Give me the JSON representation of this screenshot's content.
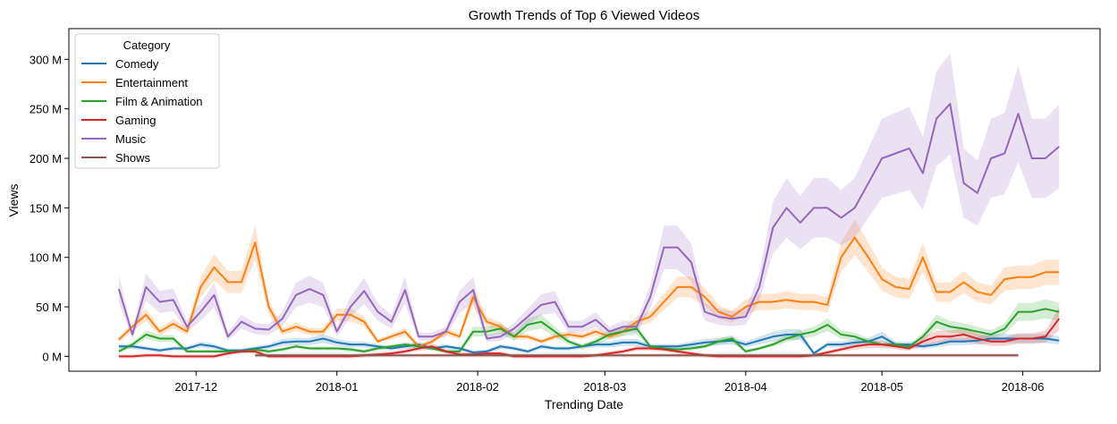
{
  "chart_data": {
    "type": "line",
    "title": "Growth Trends of Top 6 Viewed Videos",
    "xlabel": "Trending Date",
    "ylabel": "Views",
    "ylim": [
      -15,
      331
    ],
    "xlim": [
      "2017-11-03",
      "2018-06-18"
    ],
    "yticks": [
      0,
      50,
      100,
      150,
      200,
      250,
      300
    ],
    "ytick_labels": [
      "0 M",
      "50 M",
      "100 M",
      "150 M",
      "200 M",
      "250 M",
      "300 M"
    ],
    "xticks": [
      "2017-12-01",
      "2018-01-01",
      "2018-02-01",
      "2018-03-01",
      "2018-04-01",
      "2018-05-01",
      "2018-06-01"
    ],
    "xtick_labels": [
      "2017-12",
      "2018-01",
      "2018-02",
      "2018-03",
      "2018-04",
      "2018-05",
      "2018-06"
    ],
    "grid": false,
    "legend": {
      "title": "Category",
      "placement": "top-left"
    },
    "unit": "millions of views",
    "confidence_band": true,
    "x": [
      "2017-11-14",
      "2017-11-17",
      "2017-11-20",
      "2017-11-23",
      "2017-11-26",
      "2017-11-29",
      "2017-12-02",
      "2017-12-05",
      "2017-12-08",
      "2017-12-11",
      "2017-12-14",
      "2017-12-17",
      "2017-12-20",
      "2017-12-23",
      "2017-12-26",
      "2017-12-29",
      "2018-01-01",
      "2018-01-04",
      "2018-01-07",
      "2018-01-10",
      "2018-01-13",
      "2018-01-16",
      "2018-01-19",
      "2018-01-22",
      "2018-01-25",
      "2018-01-28",
      "2018-01-31",
      "2018-02-03",
      "2018-02-06",
      "2018-02-09",
      "2018-02-12",
      "2018-02-15",
      "2018-02-18",
      "2018-02-21",
      "2018-02-24",
      "2018-02-27",
      "2018-03-02",
      "2018-03-05",
      "2018-03-08",
      "2018-03-11",
      "2018-03-14",
      "2018-03-17",
      "2018-03-20",
      "2018-03-23",
      "2018-03-26",
      "2018-03-29",
      "2018-04-01",
      "2018-04-04",
      "2018-04-07",
      "2018-04-10",
      "2018-04-13",
      "2018-04-16",
      "2018-04-19",
      "2018-04-22",
      "2018-04-25",
      "2018-04-28",
      "2018-05-01",
      "2018-05-04",
      "2018-05-07",
      "2018-05-10",
      "2018-05-13",
      "2018-05-16",
      "2018-05-19",
      "2018-05-22",
      "2018-05-25",
      "2018-05-28",
      "2018-05-31",
      "2018-06-03",
      "2018-06-06",
      "2018-06-09"
    ],
    "series": [
      {
        "name": "Comedy",
        "color": "#1f77b4",
        "ci_relative": 0.25,
        "values": [
          10,
          10,
          8,
          6,
          8,
          8,
          12,
          10,
          6,
          6,
          8,
          10,
          14,
          15,
          15,
          18,
          14,
          12,
          12,
          10,
          8,
          10,
          12,
          8,
          10,
          8,
          4,
          5,
          10,
          8,
          5,
          10,
          8,
          8,
          10,
          12,
          12,
          14,
          14,
          10,
          10,
          10,
          12,
          14,
          15,
          16,
          12,
          16,
          20,
          22,
          22,
          3,
          12,
          12,
          14,
          15,
          20,
          12,
          12,
          10,
          12,
          15,
          15,
          16,
          18,
          18,
          18,
          18,
          18,
          16
        ]
      },
      {
        "name": "Entertainment",
        "color": "#ff7f0e",
        "ci_relative": 0.15,
        "values": [
          17,
          30,
          42,
          25,
          33,
          25,
          70,
          90,
          75,
          75,
          115,
          50,
          25,
          30,
          25,
          25,
          42,
          42,
          35,
          15,
          20,
          25,
          10,
          15,
          25,
          20,
          60,
          35,
          30,
          20,
          20,
          15,
          20,
          22,
          20,
          25,
          20,
          25,
          35,
          40,
          55,
          70,
          70,
          60,
          45,
          40,
          50,
          55,
          55,
          57,
          55,
          55,
          52,
          100,
          120,
          100,
          78,
          70,
          68,
          100,
          65,
          65,
          75,
          65,
          62,
          78,
          80,
          80,
          85,
          85
        ]
      },
      {
        "name": "Film & Animation",
        "color": "#2ca02c",
        "ci_relative": 0.2,
        "values": [
          5,
          12,
          22,
          18,
          18,
          5,
          5,
          5,
          5,
          5,
          7,
          5,
          7,
          10,
          8,
          8,
          8,
          7,
          5,
          8,
          10,
          12,
          10,
          8,
          5,
          5,
          25,
          25,
          28,
          20,
          32,
          35,
          25,
          15,
          10,
          15,
          22,
          25,
          28,
          10,
          8,
          7,
          8,
          10,
          15,
          18,
          5,
          8,
          12,
          18,
          22,
          25,
          32,
          22,
          20,
          15,
          12,
          12,
          10,
          20,
          35,
          30,
          28,
          25,
          22,
          28,
          45,
          45,
          48,
          45
        ]
      },
      {
        "name": "Gaming",
        "color": "#d62728",
        "ci_relative": 0.3,
        "values": [
          0,
          0,
          1,
          1,
          0,
          0,
          0,
          0,
          3,
          5,
          5,
          0,
          0,
          0,
          0,
          0,
          0,
          0,
          1,
          2,
          3,
          5,
          8,
          10,
          5,
          2,
          2,
          3,
          3,
          0,
          0,
          0,
          0,
          0,
          0,
          1,
          3,
          5,
          8,
          8,
          7,
          5,
          3,
          1,
          0,
          0,
          0,
          0,
          0,
          0,
          0,
          1,
          4,
          7,
          10,
          12,
          12,
          10,
          8,
          15,
          20,
          20,
          22,
          18,
          15,
          15,
          18,
          18,
          20,
          38
        ]
      },
      {
        "name": "Music",
        "color": "#9467bd",
        "ci_relative": 0.2,
        "values": [
          68,
          22,
          70,
          55,
          57,
          30,
          45,
          62,
          20,
          35,
          28,
          27,
          38,
          62,
          68,
          62,
          25,
          50,
          66,
          45,
          35,
          67,
          20,
          20,
          25,
          55,
          67,
          18,
          20,
          28,
          40,
          52,
          55,
          30,
          30,
          37,
          25,
          30,
          30,
          60,
          110,
          110,
          95,
          45,
          40,
          38,
          40,
          70,
          130,
          150,
          135,
          150,
          150,
          140,
          150,
          175,
          200,
          205,
          210,
          185,
          240,
          255,
          175,
          165,
          200,
          205,
          245,
          200,
          200,
          212
        ]
      },
      {
        "name": "Shows",
        "color": "#8c564b",
        "ci_relative": 0.1,
        "values": [
          null,
          null,
          null,
          null,
          null,
          null,
          null,
          null,
          null,
          null,
          1,
          1,
          1,
          1,
          1,
          1,
          1,
          1,
          1,
          1,
          1,
          1,
          1,
          1,
          1,
          1,
          1,
          1,
          1,
          1,
          1,
          1,
          1,
          1,
          1,
          1,
          1,
          1,
          1,
          1,
          1,
          1,
          1,
          1,
          1,
          1,
          1,
          1,
          1,
          1,
          1,
          1,
          1,
          1,
          1,
          1,
          1,
          1,
          1,
          1,
          1,
          1,
          1,
          1,
          1,
          1,
          1,
          null,
          null,
          null
        ]
      }
    ]
  }
}
